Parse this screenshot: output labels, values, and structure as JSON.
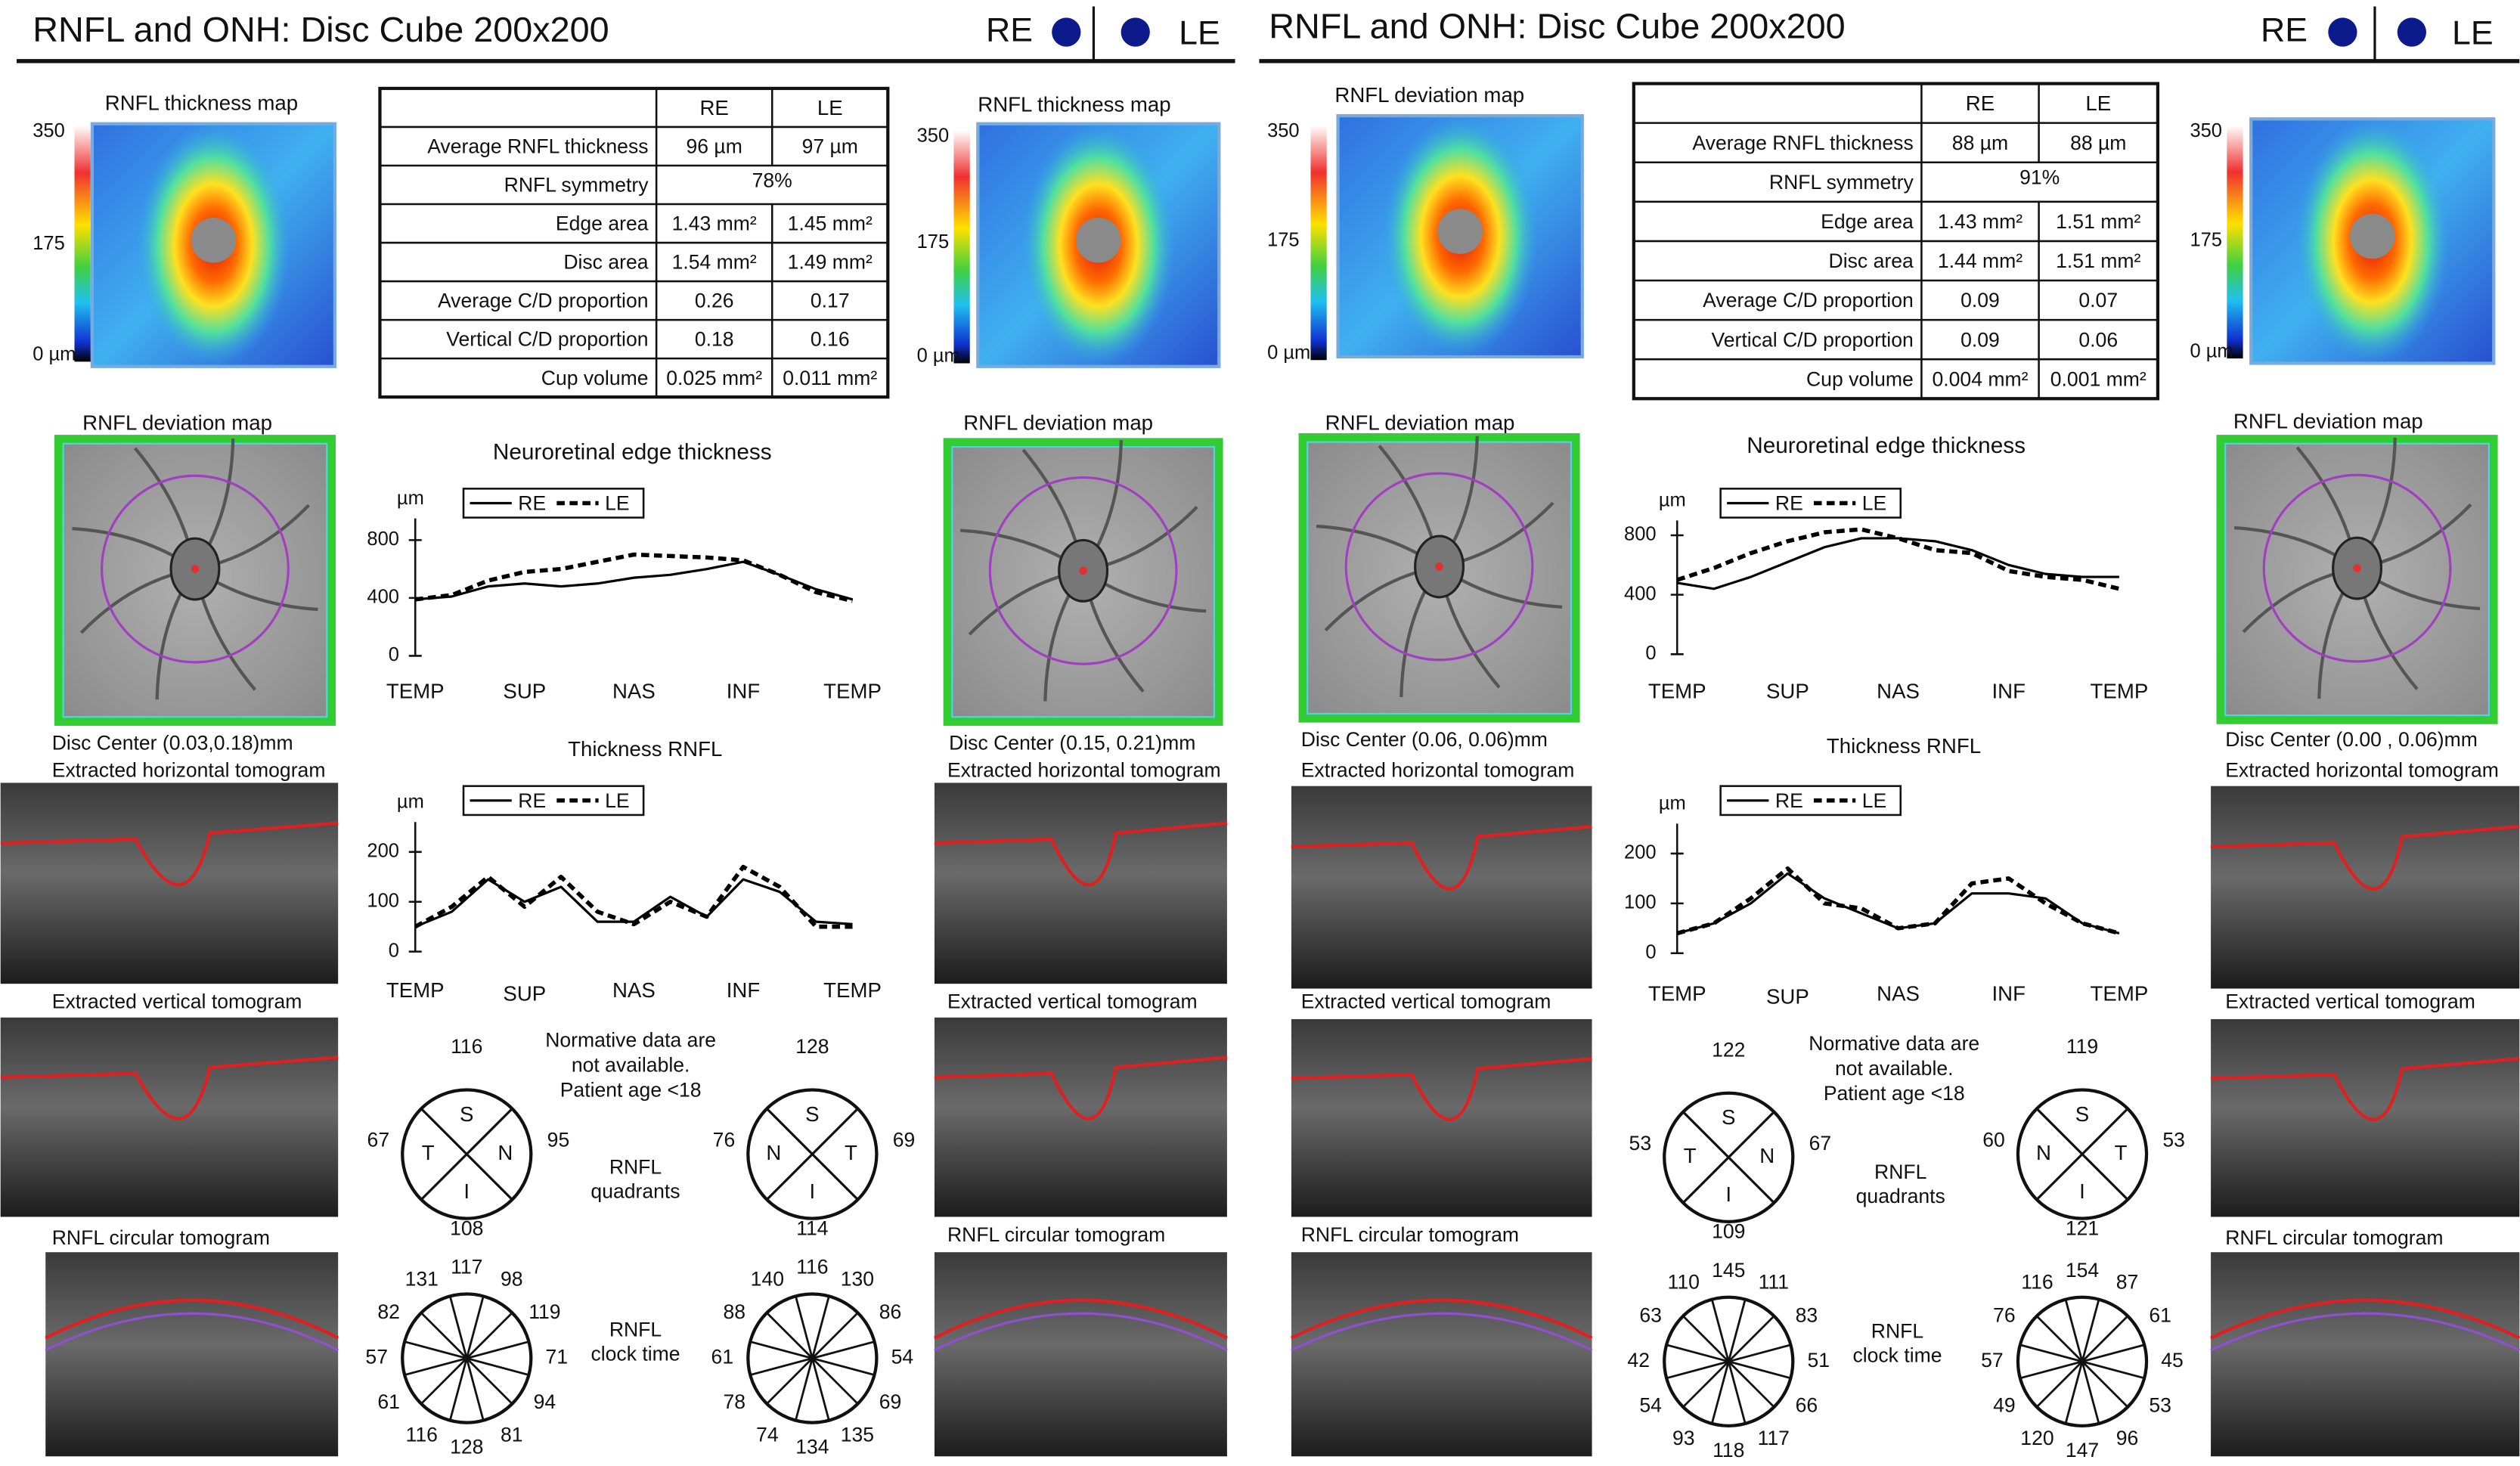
{
  "panels": [
    {
      "title": "RNFL and ONH: Disc Cube 200x200",
      "eyes": [
        "RE",
        "LE"
      ],
      "thickness_maps": [
        {
          "title": "RNFL thickness map",
          "scale": [
            "350",
            "175",
            "0 µm"
          ]
        },
        {
          "title": "RNFL thickness map",
          "scale": [
            "350",
            "175",
            "0 µm"
          ]
        }
      ],
      "table": {
        "header": [
          "RE",
          "LE"
        ],
        "rows": [
          [
            "Average RNFL thickness",
            "96 µm",
            "97 µm"
          ],
          [
            "RNFL symmetry",
            "78%"
          ],
          [
            "Edge area",
            "1.43 mm²",
            "1.45 mm²"
          ],
          [
            "Disc area",
            "1.54 mm²",
            "1.49 mm²"
          ],
          [
            "Average C/D proportion",
            "0.26",
            "0.17"
          ],
          [
            "Vertical C/D proportion",
            "0.18",
            "0.16"
          ],
          [
            "Cup volume",
            "0.025 mm²",
            "0.011 mm²"
          ]
        ]
      },
      "deviation_maps": [
        {
          "title": "RNFL deviation map",
          "disc_center": "Disc Center (0.03,0.18)mm"
        },
        {
          "title": "RNFL deviation map",
          "disc_center": "Disc Center (0.15, 0.21)mm"
        }
      ],
      "tomogram_labels": [
        [
          "Extracted horizontal tomogram",
          "Extracted vertical tomogram",
          "RNFL circular tomogram"
        ],
        [
          "Extracted horizontal tomogram",
          "Extracted vertical tomogram",
          "RNFL circular tomogram"
        ]
      ],
      "edge_chart": {
        "type": "line",
        "title": "Neuroretinal edge thickness",
        "y_label": "µm",
        "x": [
          0,
          1,
          2,
          3,
          4,
          5,
          6,
          7,
          8,
          9,
          10,
          11,
          12
        ],
        "xlim": [
          0,
          12
        ],
        "xticks": [
          {
            "value": 0,
            "label": "TEMP"
          },
          {
            "value": 3,
            "label": "SUP"
          },
          {
            "value": 6,
            "label": "NAS"
          },
          {
            "value": 9,
            "label": "INF"
          },
          {
            "value": 12,
            "label": "TEMP"
          }
        ],
        "ylim": [
          0,
          950
        ],
        "yticks": [
          0,
          400,
          800
        ],
        "series": [
          {
            "name": "RE",
            "color": "#000000",
            "dashed": false,
            "values": [
              390,
              410,
              480,
              500,
              480,
              500,
              540,
              560,
              600,
              650,
              560,
              460,
              390
            ]
          },
          {
            "name": "LE",
            "color": "#000000",
            "dashed": true,
            "values": [
              390,
              420,
              520,
              580,
              600,
              650,
              700,
              690,
              680,
              660,
              560,
              440,
              380
            ]
          }
        ]
      },
      "rnfl_chart": {
        "type": "line",
        "title": "Thickness RNFL",
        "y_label": "µm",
        "x": [
          0,
          1,
          2,
          3,
          4,
          5,
          6,
          7,
          8,
          9,
          10,
          11,
          12
        ],
        "xlim": [
          0,
          12
        ],
        "xticks": [
          {
            "value": 0,
            "label": "TEMP"
          },
          {
            "value": 3,
            "label": "SUP"
          },
          {
            "value": 6,
            "label": "NAS"
          },
          {
            "value": 9,
            "label": "INF"
          },
          {
            "value": 12,
            "label": "TEMP"
          }
        ],
        "ylim": [
          0,
          260
        ],
        "yticks": [
          0,
          100,
          200
        ],
        "series": [
          {
            "name": "RE",
            "color": "#000000",
            "dashed": false,
            "values": [
              50,
              80,
              145,
              100,
              130,
              60,
              60,
              110,
              70,
              145,
              120,
              60,
              55
            ]
          },
          {
            "name": "LE",
            "color": "#000000",
            "dashed": true,
            "values": [
              50,
              90,
              150,
              90,
              150,
              80,
              55,
              100,
              70,
              170,
              130,
              50,
              50
            ]
          }
        ]
      },
      "normative_note": [
        "Normative data are",
        "not available.",
        "Patient age <18"
      ],
      "quadrants": {
        "label": [
          "RNFL",
          "quadrants"
        ],
        "eyes": [
          {
            "letters": [
              "S",
              "T",
              "N",
              "I"
            ],
            "values": [
              116,
              67,
              95,
              108
            ]
          },
          {
            "letters": [
              "S",
              "N",
              "T",
              "I"
            ],
            "values": [
              128,
              76,
              69,
              114
            ]
          }
        ]
      },
      "clock": {
        "label": [
          "RNFL",
          "clock time"
        ],
        "eyes": [
          {
            "values": [
              117,
              98,
              119,
              71,
              94,
              81,
              128,
              116,
              61,
              57,
              82,
              131
            ]
          },
          {
            "values": [
              116,
              130,
              86,
              54,
              69,
              135,
              134,
              74,
              78,
              61,
              88,
              140
            ]
          }
        ]
      }
    },
    {
      "title": "RNFL and ONH: Disc Cube 200x200",
      "eyes": [
        "RE",
        "LE"
      ],
      "thickness_maps": [
        {
          "title": "RNFL deviation map",
          "scale": [
            "350",
            "175",
            "0 µm"
          ]
        },
        {
          "scale": [
            "350",
            "175",
            "0 µm"
          ]
        }
      ],
      "table": {
        "header": [
          "RE",
          "LE"
        ],
        "rows": [
          [
            "Average RNFL thickness",
            "88 µm",
            "88 µm"
          ],
          [
            "RNFL symmetry",
            "91%"
          ],
          [
            "Edge area",
            "1.43 mm²",
            "1.51 mm²"
          ],
          [
            "Disc area",
            "1.44 mm²",
            "1.51 mm²"
          ],
          [
            "Average C/D proportion",
            "0.09",
            "0.07"
          ],
          [
            "Vertical C/D proportion",
            "0.09",
            "0.06"
          ],
          [
            "Cup volume",
            "0.004 mm²",
            "0.001 mm²"
          ]
        ]
      },
      "deviation_maps": [
        {
          "title": "RNFL deviation map",
          "disc_center": "Disc Center (0.06, 0.06)mm"
        },
        {
          "title": "RNFL deviation map",
          "disc_center": "Disc Center (0.00 , 0.06)mm"
        }
      ],
      "tomogram_labels": [
        [
          "Extracted horizontal tomogram",
          "Extracted vertical tomogram",
          "RNFL circular tomogram"
        ],
        [
          "Extracted horizontal tomogram",
          "Extracted vertical tomogram",
          "RNFL circular tomogram"
        ]
      ],
      "edge_chart": {
        "type": "line",
        "title": "Neuroretinal edge thickness",
        "y_label": "µm",
        "x": [
          0,
          1,
          2,
          3,
          4,
          5,
          6,
          7,
          8,
          9,
          10,
          11,
          12
        ],
        "xlim": [
          0,
          12
        ],
        "xticks": [
          {
            "value": 0,
            "label": "TEMP"
          },
          {
            "value": 3,
            "label": "SUP"
          },
          {
            "value": 6,
            "label": "NAS"
          },
          {
            "value": 9,
            "label": "INF"
          },
          {
            "value": 12,
            "label": "TEMP"
          }
        ],
        "ylim": [
          0,
          900
        ],
        "yticks": [
          0,
          400,
          800
        ],
        "series": [
          {
            "name": "RE",
            "color": "#000000",
            "dashed": false,
            "values": [
              480,
              440,
              520,
              620,
              720,
              780,
              780,
              760,
              700,
              600,
              540,
              520,
              520
            ]
          },
          {
            "name": "LE",
            "color": "#000000",
            "dashed": true,
            "values": [
              500,
              580,
              680,
              760,
              820,
              840,
              780,
              700,
              680,
              560,
              520,
              500,
              440
            ]
          }
        ]
      },
      "rnfl_chart": {
        "type": "line",
        "title": "Thickness RNFL",
        "y_label": "µm",
        "x": [
          0,
          1,
          2,
          3,
          4,
          5,
          6,
          7,
          8,
          9,
          10,
          11,
          12
        ],
        "xlim": [
          0,
          12
        ],
        "xticks": [
          {
            "value": 0,
            "label": "TEMP"
          },
          {
            "value": 3,
            "label": "SUP"
          },
          {
            "value": 6,
            "label": "NAS"
          },
          {
            "value": 9,
            "label": "INF"
          },
          {
            "value": 12,
            "label": "TEMP"
          }
        ],
        "ylim": [
          0,
          260
        ],
        "yticks": [
          0,
          100,
          200
        ],
        "series": [
          {
            "name": "RE",
            "color": "#000000",
            "dashed": false,
            "values": [
              40,
              60,
              100,
              160,
              110,
              80,
              50,
              60,
              120,
              120,
              110,
              60,
              40
            ]
          },
          {
            "name": "LE",
            "color": "#000000",
            "dashed": true,
            "values": [
              40,
              60,
              110,
              170,
              100,
              90,
              50,
              60,
              140,
              150,
              100,
              60,
              40
            ]
          }
        ]
      },
      "normative_note": [
        "Normative data are",
        "not available.",
        "Patient age <18"
      ],
      "quadrants": {
        "label": [
          "RNFL",
          "quadrants"
        ],
        "eyes": [
          {
            "letters": [
              "S",
              "T",
              "N",
              "I"
            ],
            "values": [
              122,
              53,
              67,
              109
            ]
          },
          {
            "letters": [
              "S",
              "N",
              "T",
              "I"
            ],
            "values": [
              119,
              60,
              53,
              121
            ]
          }
        ]
      },
      "clock": {
        "label": [
          "RNFL",
          "clock time"
        ],
        "eyes": [
          {
            "values": [
              145,
              111,
              83,
              51,
              66,
              117,
              118,
              93,
              54,
              42,
              63,
              110
            ]
          },
          {
            "values": [
              154,
              87,
              61,
              45,
              53,
              96,
              147,
              120,
              49,
              57,
              76,
              116
            ]
          }
        ]
      }
    }
  ]
}
